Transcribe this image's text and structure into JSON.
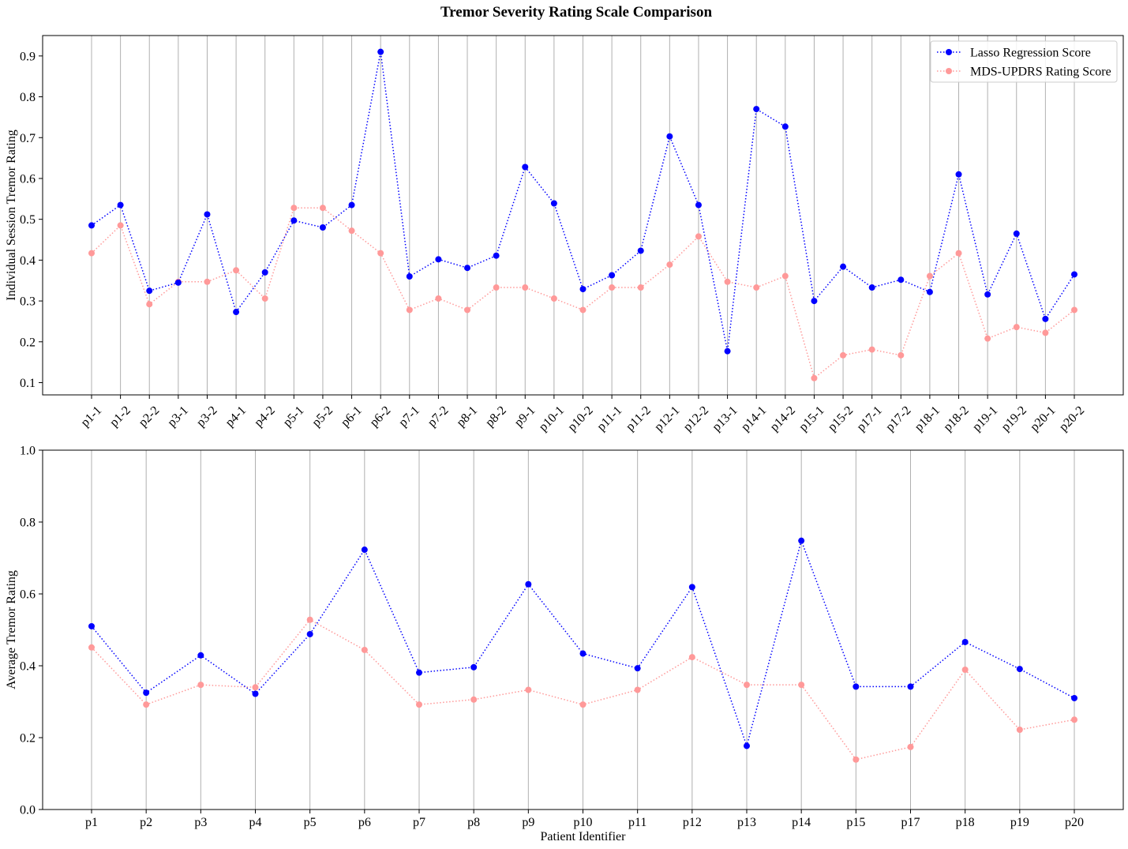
{
  "figure": {
    "title": "Tremor Severity Rating Scale Comparison"
  },
  "colors": {
    "lasso": "#0000ff",
    "updrs": "#ff9999",
    "grid": "#b0b0b0"
  },
  "legend": {
    "placement": "top-right",
    "entries": [
      "Lasso Regression Score",
      "MDS-UPDRS Rating Score"
    ]
  },
  "chart_data": [
    {
      "type": "line",
      "xlabel": "",
      "ylabel": "Individual Session Tremor Rating",
      "ylim": [
        0.07,
        0.95
      ],
      "yticks": [
        0.1,
        0.2,
        0.3,
        0.4,
        0.5,
        0.6,
        0.7,
        0.8,
        0.9
      ],
      "ytick_labels": [
        "0.1",
        "0.2",
        "0.3",
        "0.4",
        "0.5",
        "0.6",
        "0.7",
        "0.8",
        "0.9"
      ],
      "xtick_rotation": 45,
      "grid": "vertical",
      "legend": "top-right",
      "categories": [
        "p1-1",
        "p1-2",
        "p2-2",
        "p3-1",
        "p3-2",
        "p4-1",
        "p4-2",
        "p5-1",
        "p5-2",
        "p6-1",
        "p6-2",
        "p7-1",
        "p7-2",
        "p8-1",
        "p8-2",
        "p9-1",
        "p10-1",
        "p10-2",
        "p11-1",
        "p11-2",
        "p12-1",
        "p12-2",
        "p13-1",
        "p14-1",
        "p14-2",
        "p15-1",
        "p15-2",
        "p17-1",
        "p17-2",
        "p18-1",
        "p18-2",
        "p19-1",
        "p19-2",
        "p20-1",
        "p20-2"
      ],
      "series": [
        {
          "name": "Lasso Regression Score",
          "color": "#0000ff",
          "values": [
            0.485,
            0.535,
            0.325,
            0.345,
            0.512,
            0.273,
            0.37,
            0.497,
            0.48,
            0.535,
            0.91,
            0.36,
            0.402,
            0.381,
            0.411,
            0.628,
            0.539,
            0.329,
            0.363,
            0.423,
            0.703,
            0.535,
            0.177,
            0.77,
            0.727,
            0.3,
            0.384,
            0.333,
            0.352,
            0.322,
            0.61,
            0.316,
            0.465,
            0.256,
            0.365
          ]
        },
        {
          "name": "MDS-UPDRS Rating Score",
          "color": "#ff9999",
          "values": [
            0.417,
            0.485,
            0.292,
            0.347,
            0.347,
            0.375,
            0.306,
            0.528,
            0.528,
            0.472,
            0.417,
            0.278,
            0.306,
            0.278,
            0.333,
            0.333,
            0.306,
            0.278,
            0.333,
            0.333,
            0.389,
            0.458,
            0.347,
            0.333,
            0.361,
            0.111,
            0.167,
            0.181,
            0.167,
            0.361,
            0.417,
            0.208,
            0.236,
            0.222,
            0.278
          ]
        }
      ]
    },
    {
      "type": "line",
      "xlabel": "Patient Identifier",
      "ylabel": "Average Tremor Rating",
      "ylim": [
        0.0,
        1.0
      ],
      "yticks": [
        0.0,
        0.2,
        0.4,
        0.6,
        0.8,
        1.0
      ],
      "ytick_labels": [
        "0.0",
        "0.2",
        "0.4",
        "0.6",
        "0.8",
        "1.0"
      ],
      "xtick_rotation": 0,
      "grid": "vertical",
      "categories": [
        "p1",
        "p2",
        "p3",
        "p4",
        "p5",
        "p6",
        "p7",
        "p8",
        "p9",
        "p10",
        "p11",
        "p12",
        "p13",
        "p14",
        "p15",
        "p17",
        "p18",
        "p19",
        "p20"
      ],
      "series": [
        {
          "name": "Lasso Regression Score",
          "color": "#0000ff",
          "values": [
            0.51,
            0.325,
            0.429,
            0.322,
            0.488,
            0.723,
            0.381,
            0.396,
            0.627,
            0.434,
            0.393,
            0.619,
            0.177,
            0.748,
            0.342,
            0.342,
            0.466,
            0.391,
            0.31
          ]
        },
        {
          "name": "MDS-UPDRS Rating Score",
          "color": "#ff9999",
          "values": [
            0.451,
            0.292,
            0.347,
            0.34,
            0.528,
            0.444,
            0.292,
            0.306,
            0.333,
            0.292,
            0.333,
            0.424,
            0.347,
            0.347,
            0.139,
            0.174,
            0.389,
            0.222,
            0.25
          ]
        }
      ]
    }
  ]
}
